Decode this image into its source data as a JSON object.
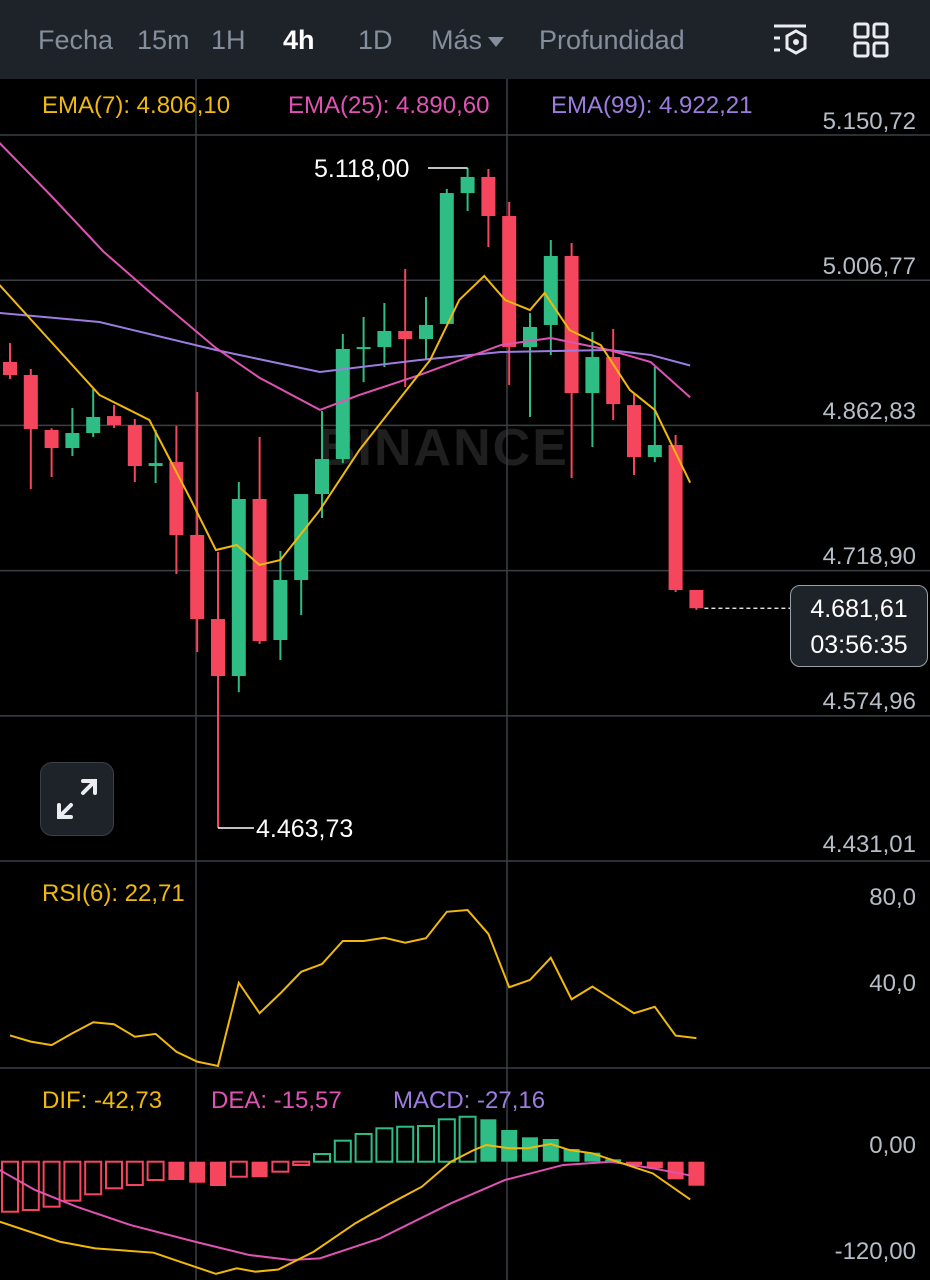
{
  "toolbar": {
    "tabs": [
      {
        "label": "Fecha",
        "active": false
      },
      {
        "label": "15m",
        "active": false
      },
      {
        "label": "1H",
        "active": false
      },
      {
        "label": "4h",
        "active": true
      },
      {
        "label": "1D",
        "active": false
      },
      {
        "label": "Más",
        "active": false
      },
      {
        "label": "Profundidad",
        "active": false
      }
    ],
    "icons": [
      "indicator-settings-icon",
      "layout-grid-icon"
    ]
  },
  "watermark": "BINANCE",
  "colors": {
    "up": "#2ebd85",
    "down": "#f6465d",
    "ema7": "#f0b90b",
    "ema25": "#e052b4",
    "ema99": "#9d7ce0",
    "rsi": "#f0b90b",
    "dif": "#f0b90b",
    "dea": "#e052b4",
    "macd": "#9d7ce0",
    "grid": "#5e6673"
  },
  "chart_data": [
    {
      "type": "candlestick",
      "title": "",
      "interval": "4h",
      "legend": [
        {
          "name": "EMA(7)",
          "text": "EMA(7): 4.806,10"
        },
        {
          "name": "EMA(25)",
          "text": "EMA(25): 4.890,60"
        },
        {
          "name": "EMA(99)",
          "text": "EMA(99): 4.922,21"
        }
      ],
      "y_ticks": [
        "5.150,72",
        "5.006,77",
        "4.862,83",
        "4.718,90",
        "4.574,96",
        "4.431,01"
      ],
      "y_tick_values": [
        5150.72,
        5006.77,
        4862.83,
        4718.9,
        4574.96,
        4431.01
      ],
      "ohlc": [
        [
          4925.7,
          4944.5,
          4908.8,
          4912.8
        ],
        [
          4912.8,
          4918.7,
          4799.8,
          4859.3
        ],
        [
          4858.3,
          4860.0,
          4811.7,
          4840.4
        ],
        [
          4840.4,
          4880.1,
          4832.5,
          4855.3
        ],
        [
          4855.3,
          4898.9,
          4851.3,
          4871.2
        ],
        [
          4872.1,
          4883.0,
          4860.3,
          4863.2
        ],
        [
          4863.2,
          4869.2,
          4806.7,
          4822.6
        ],
        [
          4822.6,
          4858.3,
          4805.7,
          4825.5
        ],
        [
          4826.5,
          4862.2,
          4715.5,
          4754.2
        ],
        [
          4754.2,
          4895.9,
          4638.2,
          4670.9
        ],
        [
          4670.9,
          4737.3,
          4463.73,
          4614.4
        ],
        [
          4614.4,
          4806.7,
          4598.5,
          4789.9
        ],
        [
          4789.9,
          4851.3,
          4646.1,
          4649.1
        ],
        [
          4650.1,
          4738.3,
          4630.3,
          4709.6
        ],
        [
          4709.6,
          4794.8,
          4674.9,
          4794.8
        ],
        [
          4794.8,
          4877.1,
          4771.0,
          4829.5
        ],
        [
          4829.5,
          4953.4,
          4825.5,
          4938.6
        ],
        [
          4938.6,
          4970.3,
          4905.8,
          4940.5
        ],
        [
          4940.5,
          4984.2,
          4920.7,
          4956.4
        ],
        [
          4956.4,
          5017.9,
          4900.9,
          4948.5
        ],
        [
          4948.5,
          4990.1,
          4927.7,
          4962.4
        ],
        [
          4963.4,
          5097.2,
          4963.4,
          5093.2
        ],
        [
          5093.2,
          5118.0,
          5075.4,
          5109.1
        ],
        [
          5109.1,
          5117.0,
          5039.7,
          5070.4
        ],
        [
          5070.4,
          5084.3,
          4902.9,
          4940.5
        ],
        [
          4940.5,
          4974.2,
          4871.2,
          4960.4
        ],
        [
          4962.4,
          5046.6,
          4932.6,
          5030.8
        ],
        [
          5030.8,
          5043.6,
          4810.7,
          4894.9
        ],
        [
          4894.9,
          4955.4,
          4841.4,
          4930.6
        ],
        [
          4930.6,
          4958.4,
          4868.2,
          4884.0
        ],
        [
          4883.0,
          4894.0,
          4813.7,
          4831.5
        ],
        [
          4831.5,
          4920.7,
          4826.5,
          4843.4
        ],
        [
          4843.4,
          4853.3,
          4697.7,
          4699.7
        ],
        [
          4699.7,
          4699.7,
          4680.0,
          4681.61
        ]
      ],
      "ema7": [
        [
          -0.5,
          5002.0
        ],
        [
          1.9,
          4947.5
        ],
        [
          4.3,
          4893.0
        ],
        [
          6.7,
          4868.2
        ],
        [
          8.7,
          4788.9
        ],
        [
          9.9,
          4739.3
        ],
        [
          10.9,
          4744.3
        ],
        [
          12,
          4724.5
        ],
        [
          13,
          4729.4
        ],
        [
          14.9,
          4779.0
        ],
        [
          16.8,
          4838.5
        ],
        [
          20.2,
          4927.7
        ],
        [
          21.6,
          4987.2
        ],
        [
          22.8,
          5011.0
        ],
        [
          23.8,
          4987.2
        ],
        [
          25,
          4977.2
        ],
        [
          25.7,
          4994.1
        ],
        [
          26.9,
          4957.4
        ],
        [
          28.4,
          4942.5
        ],
        [
          29.8,
          4898.0
        ],
        [
          31,
          4878.2
        ],
        [
          32.7,
          4806.1
        ]
      ],
      "ema25": [
        [
          -0.5,
          5142.8
        ],
        [
          2,
          5090
        ],
        [
          4.5,
          5035
        ],
        [
          7,
          4990
        ],
        [
          9.9,
          4939.6
        ],
        [
          12,
          4910
        ],
        [
          14.9,
          4878.2
        ],
        [
          16.8,
          4893.0
        ],
        [
          19.7,
          4912.9
        ],
        [
          23.6,
          4942.5
        ],
        [
          26,
          4949.5
        ],
        [
          28.8,
          4937.6
        ],
        [
          30.8,
          4925.7
        ],
        [
          32.7,
          4890.6
        ]
      ],
      "ema99": [
        [
          -0.5,
          4974.3
        ],
        [
          4.3,
          4965.3
        ],
        [
          9.9,
          4937.6
        ],
        [
          14.9,
          4915.8
        ],
        [
          19.7,
          4927.7
        ],
        [
          23.6,
          4935.6
        ],
        [
          28.8,
          4937.6
        ],
        [
          30.8,
          4932.7
        ],
        [
          32.7,
          4922.2
        ]
      ],
      "high_label": {
        "text": "5.118,00",
        "value": 5118.0,
        "index": 22
      },
      "low_label": {
        "text": "4.463,73",
        "value": 4463.73,
        "index": 10
      },
      "last_price": {
        "price": "4.681,61",
        "countdown": "03:56:35",
        "value": 4681.61
      }
    },
    {
      "type": "line",
      "name": "RSI",
      "legend": "RSI(6): 22,71",
      "y_ticks": [
        "80,0",
        "40,0"
      ],
      "values": [
        24.0,
        21.1,
        19.5,
        25.0,
        30.1,
        29.2,
        23.4,
        24.7,
        16.4,
        11.8,
        9.2,
        48.5,
        34.3,
        43.6,
        53.6,
        57.2,
        67.9,
        67.9,
        69.4,
        67.1,
        69.2,
        81.5,
        82.3,
        71.2,
        46.4,
        49.8,
        60.1,
        40.8,
        46.7,
        40.5,
        34.3,
        37.3,
        23.9,
        22.71
      ]
    },
    {
      "type": "bar+line",
      "name": "MACD",
      "legend": [
        {
          "name": "DIF",
          "text": "DIF: -42,73"
        },
        {
          "name": "DEA",
          "text": "DEA: -15,57"
        },
        {
          "name": "MACD",
          "text": "MACD: -27,16"
        }
      ],
      "y_ticks": [
        "0,00",
        "-120,00"
      ],
      "histogram": [
        -56.6,
        -54.7,
        -50.9,
        -44.1,
        -36.9,
        -30.1,
        -26.4,
        -20.7,
        -20.7,
        -23.8,
        -27.5,
        -17.0,
        -17.5,
        -11.3,
        -3.7,
        8.7,
        23.8,
        31.4,
        37.8,
        39.6,
        40.4,
        48.0,
        50.9,
        48.0,
        35.9,
        27.6,
        25.7,
        14.4,
        10.2,
        2.7,
        -3.7,
        -7.5,
        -19.9,
        -27.16
      ],
      "dif": [
        [
          -0.5,
          -67.9
        ],
        [
          2.4,
          -90.6
        ],
        [
          4.1,
          -98.1
        ],
        [
          6.9,
          -103
        ],
        [
          8.4,
          -115
        ],
        [
          9.9,
          -127
        ],
        [
          10.9,
          -120.7
        ],
        [
          11.8,
          -124.5
        ],
        [
          12.9,
          -122
        ],
        [
          14.6,
          -101.9
        ],
        [
          16.6,
          -69.8
        ],
        [
          18.3,
          -47.1
        ],
        [
          19.8,
          -28.3
        ],
        [
          21.2,
          0
        ],
        [
          22.3,
          13.2
        ],
        [
          22.9,
          18.9
        ],
        [
          24,
          15.2
        ],
        [
          24.9,
          15.2
        ],
        [
          26,
          20
        ],
        [
          26.9,
          13.2
        ],
        [
          28,
          9.5
        ],
        [
          29.2,
          0
        ],
        [
          30.9,
          -13.2
        ],
        [
          32.7,
          -42.73
        ]
      ],
      "dea": [
        [
          -0.5,
          -9.4
        ],
        [
          1.2,
          -32
        ],
        [
          3.2,
          -50.9
        ],
        [
          5.8,
          -71.7
        ],
        [
          8.9,
          -90.6
        ],
        [
          11.5,
          -105.6
        ],
        [
          13.5,
          -111.3
        ],
        [
          14.9,
          -109.4
        ],
        [
          17.8,
          -86.7
        ],
        [
          21.2,
          -47.1
        ],
        [
          23.8,
          -20.7
        ],
        [
          26.6,
          -3.7
        ],
        [
          28.9,
          0
        ],
        [
          30.9,
          -7.5
        ],
        [
          32.7,
          -15.57
        ]
      ]
    }
  ]
}
